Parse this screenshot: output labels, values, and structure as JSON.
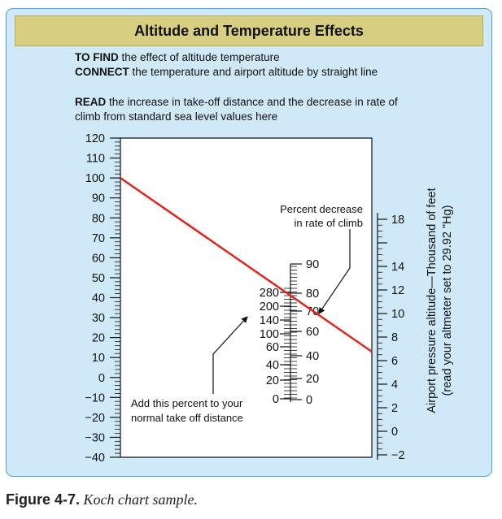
{
  "title": "Altitude and Temperature Effects",
  "instructions": {
    "line1_bold": "TO FIND",
    "line1_rest": " the effect of altitude temperature",
    "line2_bold": "CONNECT",
    "line2_rest": " the temperature and airport altitude by straight line",
    "line3_bold": "READ",
    "line3_rest": " the increase in take-off distance and the decrease in rate of",
    "line4": "climb from standard sea level values here"
  },
  "caption": {
    "label": "Figure 4-7.",
    "text": " Koch chart sample."
  },
  "chart_data": {
    "type": "nomogram",
    "colors": {
      "line": "#e0241c",
      "panel": "#cfe9f8",
      "title_bar": "#d8ce82",
      "border": "#4aa3d9"
    },
    "axes": {
      "temperature": {
        "range": [
          -40,
          120
        ],
        "labels": [
          "120",
          "110",
          "100",
          "90",
          "80",
          "70",
          "60",
          "50",
          "40",
          "30",
          "20",
          "10",
          "0",
          "−10",
          "−20",
          "−30",
          "−40"
        ]
      },
      "takeoff_increase": {
        "labels": [
          "280",
          "200",
          "140",
          "100",
          "60",
          "40",
          "20",
          "0"
        ],
        "values": [
          280,
          200,
          140,
          100,
          60,
          40,
          20,
          0
        ]
      },
      "climb_decrease": {
        "labels": [
          "90",
          "80",
          "70",
          "60",
          "40",
          "20",
          "0"
        ],
        "values": [
          90,
          80,
          70,
          60,
          40,
          20,
          0
        ]
      },
      "altitude": {
        "range": [
          -2,
          18
        ],
        "labels": [
          "18",
          "14",
          "12",
          "10",
          "8",
          "6",
          "4",
          "2",
          "0",
          "−2"
        ],
        "title_line1": "Airport pressure altitude—Thousand of feet",
        "title_line2": "(read your altmeter set to 29.92 \"Hg)"
      }
    },
    "example_line": {
      "temperature": 100,
      "altitude": 6,
      "takeoff_increase_approx": 230,
      "climb_decrease_approx": 76
    },
    "annotations": {
      "climb_line1": "Percent decrease",
      "climb_line2": "in rate of climb",
      "takeoff_line1": "Add this percent to your",
      "takeoff_line2": "normal take off distance"
    }
  }
}
